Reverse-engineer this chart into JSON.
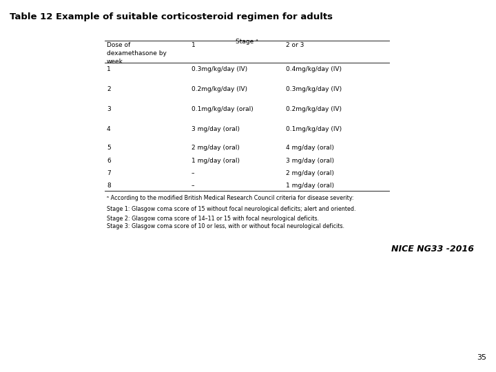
{
  "title": "Table 12 Example of suitable corticosteroid regimen for adults",
  "stage_label": "Stage ᵃ",
  "header_col1": "Dose of\ndexamethasone by\nweek",
  "header_col2": "1",
  "header_col3": "2 or 3",
  "rows": [
    [
      "1",
      "0.3mg/kg/day (IV)",
      "0.4mg/kg/day (IV)"
    ],
    [
      "2",
      "0.2mg/kg/day (IV)",
      "0.3mg/kg/day (IV)"
    ],
    [
      "3",
      "0.1mg/kg/day (oral)",
      "0.2mg/kg/day (IV)"
    ],
    [
      "4",
      "3 mg/day (oral)",
      "0.1mg/kg/day (IV)"
    ],
    [
      "5",
      "2 mg/day (oral)",
      "4 mg/day (oral)"
    ],
    [
      "6",
      "1 mg/day (oral)",
      "3 mg/day (oral)"
    ],
    [
      "7",
      "–",
      "2 mg/day (oral)"
    ],
    [
      "8",
      "–",
      "1 mg/day (oral)"
    ]
  ],
  "footnote_a": "ᵃ According to the modified British Medical Research Council criteria for disease severity:",
  "footnote_b": "Stage 1: Glasgow coma score of 15 without focal neurological deficits; alert and oriented.",
  "footnote_c": "Stage 2: Glasgow coma score of 14–11 or 15 with focal neurological deficits.",
  "footnote_d": "Stage 3: Glasgow coma score of 10 or less, with or without focal neurological deficits.",
  "watermark": "NICE NG33 -2016",
  "page_number": "35",
  "bg_color": "#ffffff",
  "text_color": "#000000",
  "title_fontsize": 9.5,
  "table_fontsize": 6.5,
  "footnote_fontsize": 5.8,
  "watermark_fontsize": 9
}
